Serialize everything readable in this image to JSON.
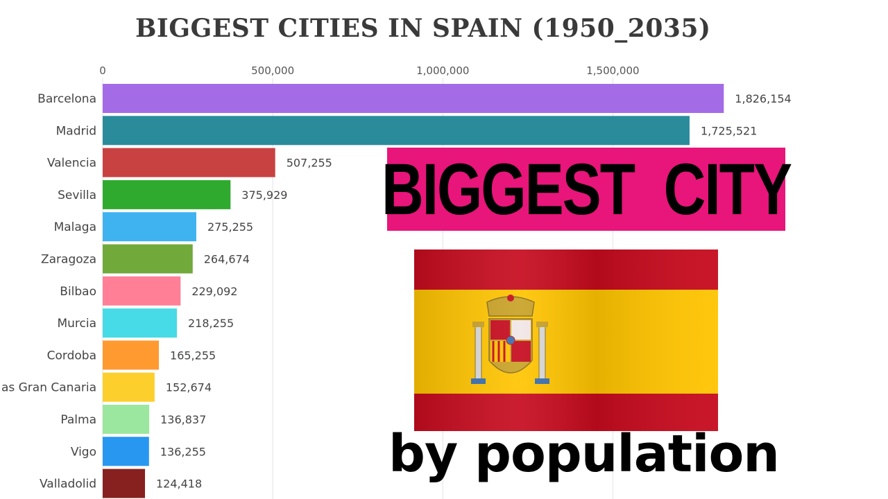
{
  "chart_data": {
    "type": "bar",
    "orientation": "horizontal",
    "title": "BIGGEST CITIES IN SPAIN (1950_2035)",
    "xlim": [
      0,
      1850000
    ],
    "xticks": [
      0,
      500000,
      1000000,
      1500000
    ],
    "xtick_labels": [
      "0",
      "500,000",
      "1,000,000",
      "1,500,000"
    ],
    "grid": true,
    "categories": [
      "Barcelona",
      "Madrid",
      "Valencia",
      "Sevilla",
      "Malaga",
      "Zaragoza",
      "Bilbao",
      "Murcia",
      "Cordoba",
      "as Gran Canaria",
      "Palma",
      "Vigo",
      "Valladolid"
    ],
    "values": [
      1826154,
      1725521,
      507255,
      375929,
      275255,
      264674,
      229092,
      218255,
      165255,
      152674,
      136837,
      136255,
      124418
    ],
    "value_labels": [
      "1,826,154",
      "1,725,521",
      "507,255",
      "375,929",
      "275,255",
      "264,674",
      "229,092",
      "218,255",
      "165,255",
      "152,674",
      "136,837",
      "136,255",
      "124,418"
    ],
    "colors": [
      "#a46be6",
      "#2a8b9b",
      "#c84242",
      "#2faa2f",
      "#3fb2f0",
      "#71a93b",
      "#ff7f96",
      "#46dbe6",
      "#ff9a30",
      "#fdcf2c",
      "#9be79f",
      "#2897f0",
      "#87211f"
    ]
  },
  "overlay": {
    "heading": "BIGGEST  CITY",
    "subtitle": "by population",
    "heading_bg": "#e8157a",
    "flag": {
      "name": "spain-flag",
      "red": "#c60b1e",
      "yellow": "#ffc400"
    }
  }
}
